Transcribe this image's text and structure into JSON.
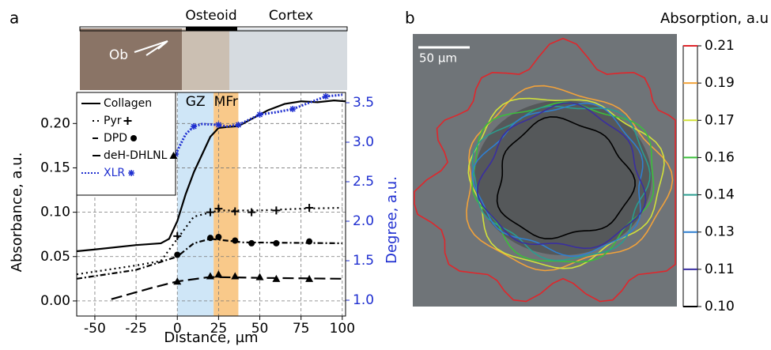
{
  "panel_labels": [
    "a",
    "b"
  ],
  "chart_data": [
    {
      "type": "line",
      "image_labels": [
        "Osteoid",
        "Cortex",
        "Ob"
      ],
      "xlabel": "Distance, µm",
      "ylabel": "Absorbance, a.u.",
      "y2label": "Degree, a.u.",
      "xlim": [
        -61,
        102
      ],
      "ylim": [
        -0.017,
        0.235
      ],
      "y2lim": [
        0.8,
        3.63
      ],
      "xticks": [
        -50,
        -25,
        0,
        25,
        50,
        75,
        100
      ],
      "yticks": [
        {
          "value": 0,
          "label": "0.00"
        },
        0.05,
        {
          "value": 0.1,
          "label": "0.10"
        },
        0.15,
        {
          "value": 0.2,
          "label": "0.20"
        }
      ],
      "y2ticks": [
        {
          "value": 1,
          "label": "1.0"
        },
        1.5,
        {
          "value": 2,
          "label": "2.0"
        },
        2.5,
        {
          "value": 3,
          "label": "3.0"
        },
        3.5
      ],
      "grid": true,
      "regions": [
        {
          "label": "GZ",
          "range": [
            0,
            22
          ],
          "color": "#cfe6f7"
        },
        {
          "label": "MFr",
          "range": [
            22,
            37
          ],
          "color": "#f9c98a"
        }
      ],
      "series": [
        {
          "name": "Collagen",
          "color": "#000000",
          "dash": "",
          "marker": "none",
          "x": [
            -61,
            -50,
            -25,
            -10,
            -5,
            0,
            5,
            10,
            15,
            20,
            25,
            30,
            37,
            45,
            55,
            65,
            75,
            85,
            95,
            102
          ],
          "values": [
            0.056,
            0.058,
            0.063,
            0.065,
            0.07,
            0.09,
            0.12,
            0.145,
            0.165,
            0.185,
            0.195,
            0.196,
            0.197,
            0.205,
            0.215,
            0.222,
            0.225,
            0.224,
            0.226,
            0.225
          ]
        },
        {
          "name": "Pyr",
          "color": "#000000",
          "dash": "2 4",
          "marker": "plus",
          "x": [
            -61,
            -25,
            -10,
            0,
            10,
            25,
            50,
            75,
            100
          ],
          "values": [
            0.03,
            0.04,
            0.045,
            0.07,
            0.095,
            0.102,
            0.102,
            0.104,
            0.105
          ],
          "marker_x": [
            0,
            20,
            25,
            35,
            45,
            60,
            80
          ],
          "marker_values": [
            0.073,
            0.1,
            0.104,
            0.101,
            0.1,
            0.102,
            0.105
          ]
        },
        {
          "name": "DPD",
          "color": "#000000",
          "dash": "7 3 2 3",
          "marker": "circle",
          "x": [
            -61,
            -25,
            0,
            10,
            20,
            40,
            100
          ],
          "values": [
            0.025,
            0.035,
            0.05,
            0.065,
            0.07,
            0.066,
            0.065
          ],
          "marker_x": [
            0,
            20,
            25,
            35,
            45,
            60,
            80
          ],
          "marker_values": [
            0.052,
            0.071,
            0.072,
            0.068,
            0.065,
            0.065,
            0.067
          ]
        },
        {
          "name": "deH-DHLNL",
          "color": "#000000",
          "dash": "14 6",
          "marker": "triangle",
          "x": [
            -40,
            -15,
            0,
            20,
            50,
            100
          ],
          "values": [
            0.002,
            0.015,
            0.022,
            0.027,
            0.026,
            0.025
          ],
          "marker_x": [
            0,
            20,
            25,
            35,
            50,
            60,
            80
          ],
          "marker_values": [
            0.022,
            0.028,
            0.03,
            0.028,
            0.027,
            0.025,
            0.025
          ]
        },
        {
          "name": "XLR",
          "color": "#1f2fd0",
          "dash": "2 2",
          "marker": "star",
          "axis": "y2",
          "x": [
            -1,
            5,
            10,
            15,
            25,
            30,
            37,
            45,
            50,
            60,
            70,
            80,
            90,
            100
          ],
          "values": [
            2.85,
            3.1,
            3.2,
            3.23,
            3.22,
            3.2,
            3.22,
            3.3,
            3.35,
            3.38,
            3.42,
            3.5,
            3.58,
            3.6
          ],
          "marker_x": [
            -1,
            10,
            25,
            37,
            50,
            70,
            90
          ],
          "marker_values": [
            2.85,
            3.2,
            3.22,
            3.22,
            3.35,
            3.42,
            3.58
          ]
        }
      ]
    },
    {
      "type": "contour",
      "colorbar_title": "Absorption, a.u",
      "scalebar": "50 µm",
      "levels": [
        {
          "value": 0.21,
          "label": "0.21",
          "color": "#e0262b"
        },
        {
          "value": 0.19,
          "label": "0.19",
          "color": "#f2a23a"
        },
        {
          "value": 0.17,
          "label": "0.17",
          "color": "#d2e23a"
        },
        {
          "value": 0.16,
          "label": "0.16",
          "color": "#3bbf3b"
        },
        {
          "value": 0.14,
          "label": "0.14",
          "color": "#2a9d8f"
        },
        {
          "value": 0.13,
          "label": "0.13",
          "color": "#2f7fd0"
        },
        {
          "value": 0.11,
          "label": "0.11",
          "color": "#3a2ea0"
        },
        {
          "value": 0.1,
          "label": "0.10",
          "color": "#000000"
        }
      ]
    }
  ]
}
